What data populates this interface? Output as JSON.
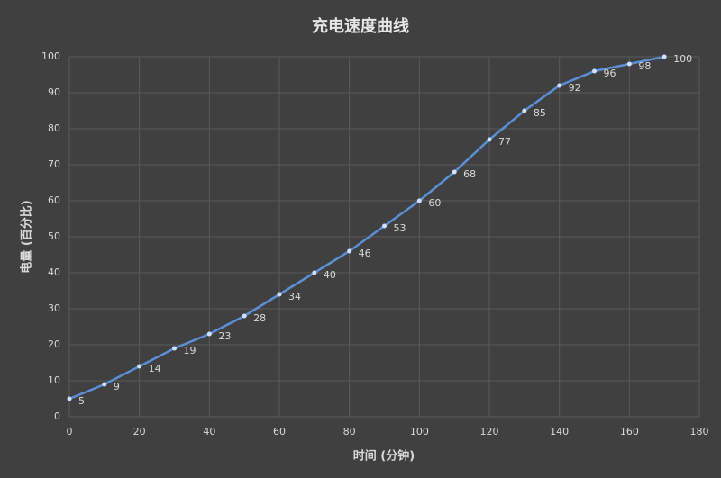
{
  "chart_data": {
    "type": "line",
    "title": "充电速度曲线",
    "x_label": "时间 (分钟)",
    "y_label": "电量 (百分比)",
    "x": [
      0,
      10,
      20,
      30,
      40,
      50,
      60,
      70,
      80,
      90,
      100,
      110,
      120,
      130,
      140,
      150,
      160,
      170
    ],
    "values": [
      5,
      9,
      14,
      19,
      23,
      28,
      34,
      40,
      46,
      53,
      60,
      68,
      77,
      85,
      92,
      96,
      98,
      100
    ],
    "color": "#5b8fd6",
    "xlim": [
      0,
      180
    ],
    "xticks": [
      0,
      20,
      40,
      60,
      80,
      100,
      120,
      140,
      160,
      180
    ],
    "ylim": [
      0,
      100
    ],
    "yticks": [
      0,
      10,
      20,
      30,
      40,
      50,
      60,
      70,
      80,
      90,
      100
    ],
    "grid": true
  }
}
